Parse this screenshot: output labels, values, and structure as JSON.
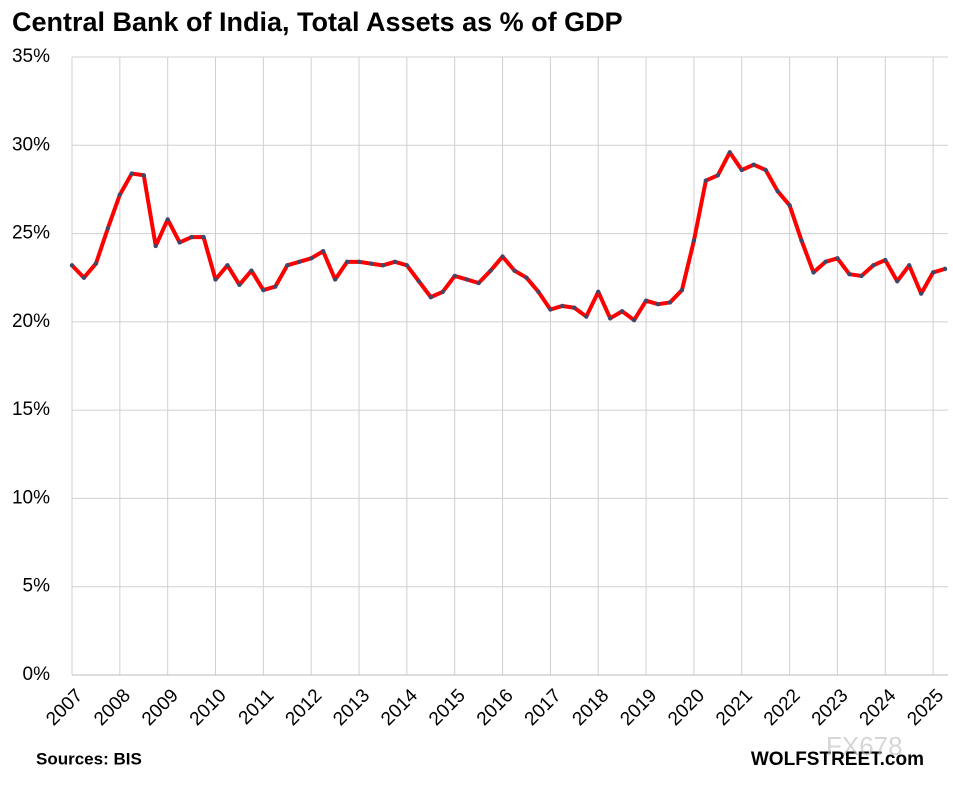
{
  "chart_data": {
    "type": "line",
    "title": "Central Bank of India, Total Assets as % of GDP",
    "categories": [
      "2007",
      null,
      null,
      null,
      "2008",
      null,
      null,
      null,
      "2009",
      null,
      null,
      null,
      "2010",
      null,
      null,
      null,
      "2011",
      null,
      null,
      null,
      "2012",
      null,
      null,
      null,
      "2013",
      null,
      null,
      null,
      "2014",
      null,
      null,
      null,
      "2015",
      null,
      null,
      null,
      "2016",
      null,
      null,
      null,
      "2017",
      null,
      null,
      null,
      "2018",
      null,
      null,
      null,
      "2019",
      null,
      null,
      null,
      "2020",
      null,
      null,
      null,
      "2021",
      null,
      null,
      null,
      "2022",
      null,
      null,
      null,
      "2023",
      null,
      null,
      null,
      "2024",
      null,
      null,
      null,
      "2025",
      null
    ],
    "series": [
      {
        "name": "Total Assets as % of GDP",
        "color": "#ff0000",
        "marker_color": "#3b4a6b",
        "values": [
          23.2,
          22.5,
          23.3,
          25.3,
          27.2,
          28.4,
          28.3,
          24.3,
          25.8,
          24.5,
          24.8,
          24.8,
          22.4,
          23.2,
          22.1,
          22.9,
          21.8,
          22.0,
          23.2,
          23.4,
          23.6,
          24.0,
          22.4,
          23.4,
          23.4,
          23.3,
          23.2,
          23.4,
          23.2,
          22.3,
          21.4,
          21.7,
          22.6,
          22.4,
          22.2,
          22.9,
          23.7,
          22.9,
          22.5,
          21.7,
          20.7,
          20.9,
          20.8,
          20.3,
          21.7,
          20.2,
          20.6,
          20.1,
          21.2,
          21.0,
          21.1,
          21.8,
          24.6,
          28.0,
          28.3,
          29.6,
          28.6,
          28.9,
          28.6,
          27.4,
          26.6,
          24.6,
          22.8,
          23.4,
          23.6,
          22.7,
          22.6,
          23.2,
          23.5,
          22.3,
          23.2,
          21.6,
          22.8,
          23.0
        ]
      }
    ],
    "ylim": [
      0,
      35
    ],
    "yticks": [
      {
        "value": 0,
        "label": "0%"
      },
      {
        "value": 5,
        "label": "5%"
      },
      {
        "value": 10,
        "label": "10%"
      },
      {
        "value": 15,
        "label": "15%"
      },
      {
        "value": 20,
        "label": "20%"
      },
      {
        "value": 25,
        "label": "25%"
      },
      {
        "value": 30,
        "label": "30%"
      },
      {
        "value": 35,
        "label": "35%"
      }
    ],
    "grid": true,
    "source": "Sources: BIS",
    "credit": "WOLFSTREET.com",
    "watermark": "FX678"
  }
}
